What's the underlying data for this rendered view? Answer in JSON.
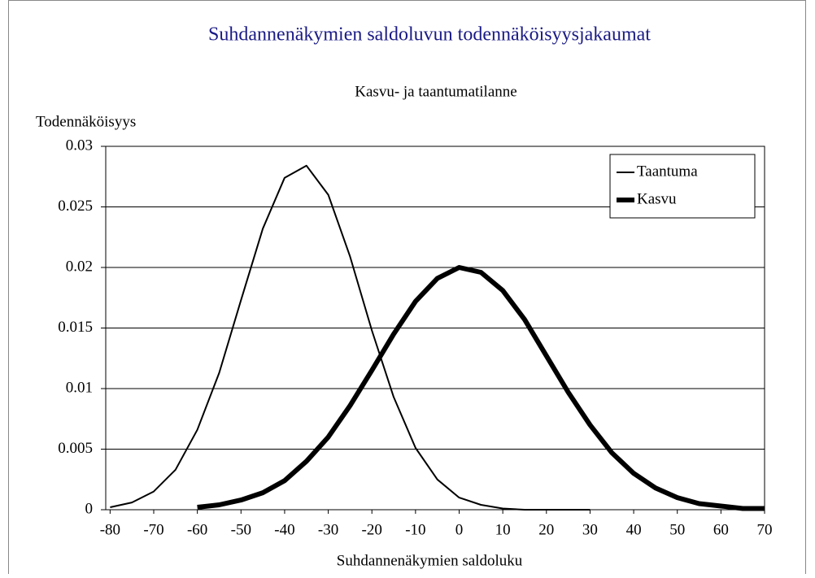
{
  "chart_data": {
    "type": "line",
    "title": "Suhdannenäkymien saldoluvun todennäköisyysjakaumat",
    "subtitle": "Kasvu- ja taantumatilanne",
    "y_label": "Todennäköisyys",
    "x_label": "Suhdannenäkymien saldoluku",
    "x": [
      -80,
      -75,
      -70,
      -65,
      -60,
      -55,
      -50,
      -45,
      -40,
      -35,
      -30,
      -25,
      -20,
      -15,
      -10,
      -5,
      0,
      5,
      10,
      15,
      20,
      25,
      30,
      35,
      40,
      45,
      50,
      55,
      60,
      65,
      70
    ],
    "series": [
      {
        "name": "Taantuma",
        "color": "#000000",
        "line_width": 2,
        "values": [
          0.0002,
          0.0006,
          0.0015,
          0.0033,
          0.0066,
          0.0113,
          0.0173,
          0.0232,
          0.0274,
          0.0284,
          0.026,
          0.0209,
          0.0148,
          0.0093,
          0.0051,
          0.0025,
          0.001,
          0.0004,
          0.0001,
          0,
          0,
          0,
          0,
          null,
          null,
          null,
          null,
          null,
          null,
          null,
          null
        ]
      },
      {
        "name": "Kasvu",
        "color": "#000000",
        "line_width": 6,
        "values": [
          null,
          null,
          null,
          null,
          0.0002,
          0.0004,
          0.0008,
          0.0014,
          0.0024,
          0.004,
          0.006,
          0.0086,
          0.0115,
          0.0145,
          0.0172,
          0.0191,
          0.02,
          0.0196,
          0.0181,
          0.0157,
          0.0127,
          0.0097,
          0.007,
          0.0047,
          0.003,
          0.0018,
          0.001,
          0.0005,
          0.0003,
          0.0001,
          0.0001
        ]
      }
    ],
    "xlim": [
      -81,
      70
    ],
    "xticks": [
      -80,
      -70,
      -60,
      -50,
      -40,
      -30,
      -20,
      -10,
      0,
      10,
      20,
      30,
      40,
      50,
      60,
      70
    ],
    "ylim": [
      0,
      0.03
    ],
    "yticks": [
      0,
      0.005,
      0.01,
      0.015,
      0.02,
      0.025,
      0.03
    ],
    "grid": true,
    "legend": "top-right"
  }
}
